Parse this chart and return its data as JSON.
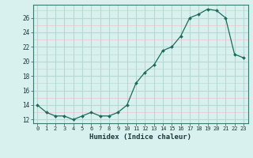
{
  "x": [
    0,
    1,
    2,
    3,
    4,
    5,
    6,
    7,
    8,
    9,
    10,
    11,
    12,
    13,
    14,
    15,
    16,
    17,
    18,
    19,
    20,
    21,
    22,
    23
  ],
  "y": [
    14,
    13,
    12.5,
    12.5,
    12,
    12.5,
    13,
    12.5,
    12.5,
    13,
    14,
    17,
    18.5,
    19.5,
    21.5,
    22,
    23.5,
    26,
    26.5,
    27.2,
    27,
    26,
    21,
    20.5
  ],
  "line_color": "#1a6b5a",
  "marker": "D",
  "marker_size": 2.0,
  "bg_color": "#d8f0ee",
  "grid_major_color": "#b8d8d5",
  "grid_minor_color": "#e8c8c8",
  "xlabel": "Humidex (Indice chaleur)",
  "xlim": [
    -0.5,
    23.5
  ],
  "ylim": [
    11.5,
    27.8
  ],
  "yticks": [
    12,
    14,
    16,
    18,
    20,
    22,
    24,
    26
  ],
  "xticks": [
    0,
    1,
    2,
    3,
    4,
    5,
    6,
    7,
    8,
    9,
    10,
    11,
    12,
    13,
    14,
    15,
    16,
    17,
    18,
    19,
    20,
    21,
    22,
    23
  ]
}
